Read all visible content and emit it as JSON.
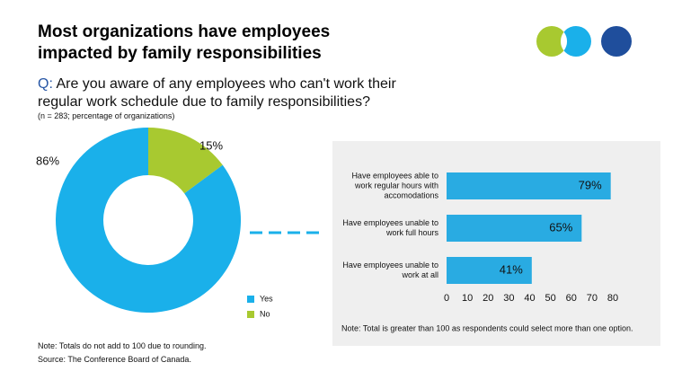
{
  "title": "Most organizations have employees impacted by family responsibilities",
  "question_prefix": "Q:",
  "question": "Are you aware of any employees who can't work their regular work schedule due to family responsibilities?",
  "subtitle": "(n = 283; percentage of organizations)",
  "notes": [
    "Note: Totals do not add to 100 due to rounding.",
    "Source: The Conference Board of Canada."
  ],
  "chart_data": [
    {
      "type": "pie",
      "categories": [
        "Yes",
        "No"
      ],
      "values": [
        86,
        15
      ],
      "value_labels": [
        "86%",
        "15%"
      ],
      "colors": [
        "#1ab0ea",
        "#a8c930"
      ]
    },
    {
      "type": "bar",
      "orientation": "horizontal",
      "categories": [
        "Have employees able to work regular hours with accomodations",
        "Have employees unable to work full hours",
        "Have employees unable to work at all"
      ],
      "values": [
        79,
        65,
        41
      ],
      "value_labels": [
        "79%",
        "65%",
        "41%"
      ],
      "color": "#29abe2",
      "xlim": [
        0,
        80
      ],
      "xticks": [
        0,
        10,
        20,
        30,
        40,
        50,
        60,
        70,
        80
      ],
      "note": "Note: Total is greater than 100 as respondents could select more than one option."
    }
  ]
}
